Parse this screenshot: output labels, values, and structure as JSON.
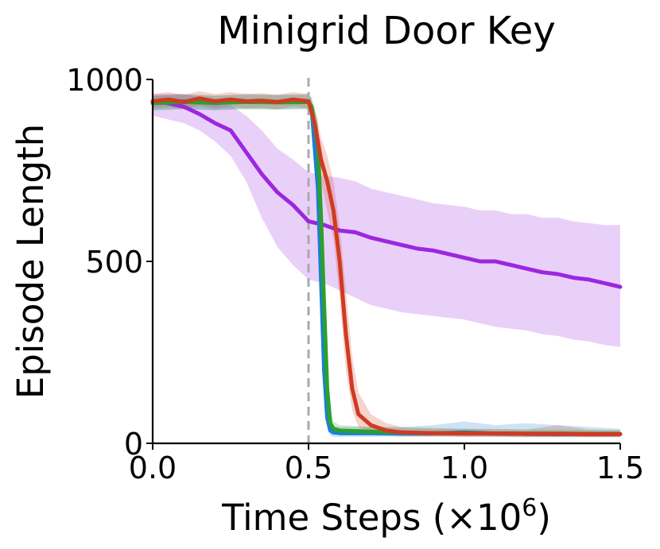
{
  "chart_data": {
    "type": "line",
    "title": "Minigrid Door Key",
    "xlabel": "Time Steps (×10",
    "xlabel_sup": "6",
    "xlabel_tail": ")",
    "ylabel": "Episode Length",
    "xlim": [
      0.0,
      1.5
    ],
    "ylim": [
      0,
      1000
    ],
    "xticks": [
      0.0,
      0.5,
      1.0,
      1.5
    ],
    "xtick_labels": [
      "0.0",
      "0.5",
      "1.0",
      "1.5"
    ],
    "yticks": [
      0,
      500,
      1000
    ],
    "ytick_labels": [
      "0",
      "500",
      "1000"
    ],
    "vline": {
      "x": 0.5,
      "color": "#aaaaaa",
      "style": "dashed"
    },
    "grid": false,
    "series": [
      {
        "color": "#9b27e0",
        "x": [
          0.0,
          0.05,
          0.1,
          0.15,
          0.2,
          0.25,
          0.3,
          0.35,
          0.4,
          0.45,
          0.5,
          0.55,
          0.6,
          0.65,
          0.7,
          0.75,
          0.8,
          0.85,
          0.9,
          0.95,
          1.0,
          1.05,
          1.1,
          1.15,
          1.2,
          1.25,
          1.3,
          1.35,
          1.4,
          1.45,
          1.5
        ],
        "y": [
          940,
          935,
          925,
          905,
          880,
          860,
          800,
          740,
          690,
          655,
          610,
          600,
          585,
          580,
          565,
          555,
          545,
          535,
          530,
          520,
          510,
          500,
          500,
          490,
          480,
          470,
          465,
          455,
          450,
          440,
          430
        ],
        "lower": [
          900,
          890,
          880,
          860,
          830,
          790,
          720,
          620,
          540,
          490,
          450,
          440,
          420,
          400,
          380,
          370,
          360,
          355,
          350,
          345,
          340,
          330,
          320,
          315,
          310,
          300,
          295,
          285,
          280,
          270,
          265
        ],
        "upper": [
          960,
          960,
          960,
          950,
          940,
          930,
          900,
          860,
          810,
          780,
          745,
          735,
          730,
          720,
          700,
          690,
          680,
          670,
          660,
          655,
          650,
          640,
          640,
          630,
          630,
          620,
          620,
          610,
          605,
          600,
          600
        ]
      },
      {
        "color": "#1a7fd6",
        "x": [
          0.0,
          0.1,
          0.2,
          0.3,
          0.4,
          0.5,
          0.51,
          0.53,
          0.54,
          0.55,
          0.56,
          0.57,
          0.58,
          0.6,
          0.7,
          0.8,
          0.9,
          1.0,
          1.1,
          1.2,
          1.3,
          1.4,
          1.5
        ],
        "y": [
          935,
          940,
          935,
          940,
          938,
          940,
          920,
          700,
          450,
          200,
          70,
          35,
          30,
          28,
          28,
          27,
          27,
          30,
          27,
          26,
          25,
          26,
          25
        ],
        "lower": [
          915,
          920,
          915,
          920,
          918,
          920,
          880,
          620,
          360,
          130,
          40,
          20,
          18,
          18,
          18,
          18,
          18,
          18,
          18,
          17,
          17,
          17,
          17
        ],
        "upper": [
          955,
          960,
          955,
          960,
          958,
          960,
          950,
          780,
          540,
          280,
          110,
          55,
          45,
          45,
          45,
          45,
          50,
          60,
          50,
          55,
          50,
          45,
          40
        ]
      },
      {
        "color": "#2ca02c",
        "x": [
          0.0,
          0.1,
          0.2,
          0.3,
          0.4,
          0.5,
          0.51,
          0.53,
          0.54,
          0.55,
          0.56,
          0.57,
          0.58,
          0.6,
          0.7,
          0.8,
          0.9,
          1.0,
          1.1,
          1.2,
          1.3,
          1.4,
          1.5
        ],
        "y": [
          935,
          938,
          936,
          938,
          937,
          938,
          925,
          820,
          620,
          380,
          150,
          55,
          40,
          35,
          32,
          30,
          28,
          28,
          27,
          27,
          27,
          26,
          26
        ],
        "lower": [
          915,
          918,
          916,
          918,
          917,
          918,
          895,
          740,
          520,
          280,
          90,
          35,
          25,
          22,
          22,
          20,
          20,
          19,
          19,
          19,
          19,
          18,
          18
        ],
        "upper": [
          955,
          958,
          956,
          958,
          957,
          958,
          950,
          890,
          720,
          480,
          220,
          85,
          60,
          50,
          45,
          42,
          40,
          40,
          38,
          38,
          38,
          36,
          36
        ]
      },
      {
        "color": "#d03a22",
        "x": [
          0.0,
          0.05,
          0.1,
          0.15,
          0.2,
          0.25,
          0.3,
          0.35,
          0.4,
          0.45,
          0.5,
          0.52,
          0.54,
          0.56,
          0.58,
          0.6,
          0.62,
          0.64,
          0.66,
          0.7,
          0.75,
          0.8,
          0.9,
          1.0,
          1.1,
          1.2,
          1.3,
          1.4,
          1.5
        ],
        "y": [
          940,
          945,
          938,
          948,
          940,
          945,
          940,
          942,
          938,
          945,
          940,
          880,
          780,
          720,
          640,
          500,
          300,
          150,
          80,
          50,
          35,
          30,
          28,
          27,
          27,
          26,
          26,
          25,
          25
        ],
        "lower": [
          920,
          925,
          918,
          928,
          920,
          925,
          920,
          922,
          918,
          925,
          920,
          840,
          720,
          640,
          560,
          400,
          200,
          90,
          45,
          30,
          22,
          20,
          19,
          18,
          18,
          17,
          17,
          17,
          17
        ],
        "upper": [
          960,
          965,
          958,
          968,
          960,
          965,
          960,
          962,
          958,
          965,
          960,
          920,
          840,
          790,
          720,
          600,
          420,
          240,
          140,
          80,
          55,
          45,
          42,
          40,
          40,
          38,
          50,
          38,
          36
        ]
      }
    ]
  }
}
